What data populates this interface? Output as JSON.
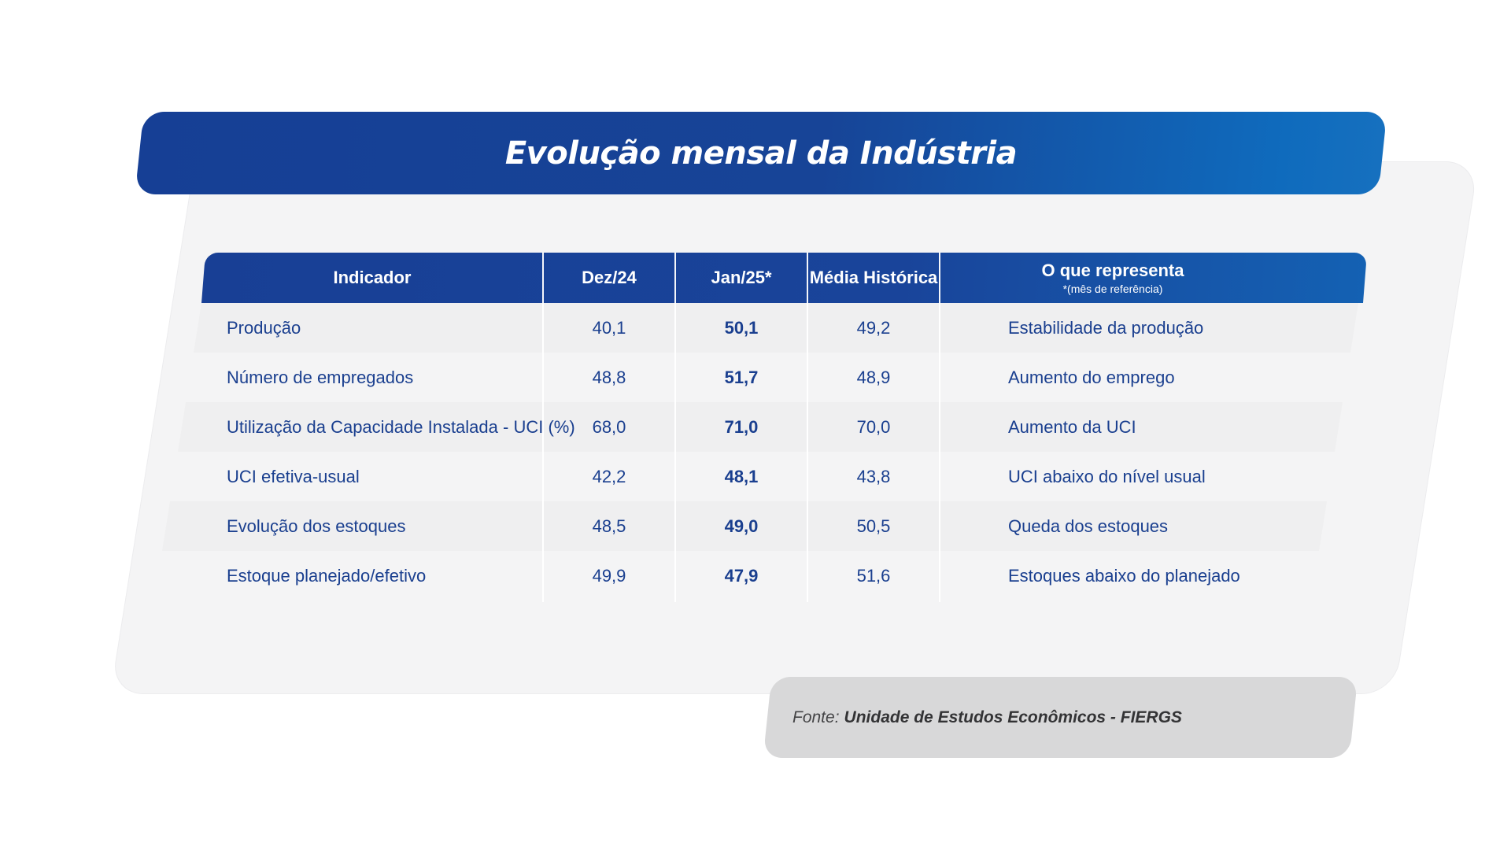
{
  "title": "Evolução mensal da Indústria",
  "table": {
    "headers": [
      {
        "label": "Indicador",
        "sub": ""
      },
      {
        "label": "Dez/24",
        "sub": ""
      },
      {
        "label": "Jan/25*",
        "sub": ""
      },
      {
        "label": "Média Histórica",
        "sub": ""
      },
      {
        "label": "O que representa",
        "sub": "*(mês de referência)"
      }
    ],
    "rows": [
      {
        "indicador": "Produção",
        "dez24": "40,1",
        "jan25": "50,1",
        "media": "49,2",
        "representa": "Estabilidade da produção"
      },
      {
        "indicador": "Número de empregados",
        "dez24": "48,8",
        "jan25": "51,7",
        "media": "48,9",
        "representa": "Aumento do emprego"
      },
      {
        "indicador": "Utilização da Capacidade Instalada - UCI (%)",
        "dez24": "68,0",
        "jan25": "71,0",
        "media": "70,0",
        "representa": "Aumento da UCI"
      },
      {
        "indicador": "UCI efetiva-usual",
        "dez24": "42,2",
        "jan25": "48,1",
        "media": "43,8",
        "representa": "UCI abaixo do nível usual"
      },
      {
        "indicador": "Evolução dos estoques",
        "dez24": "48,5",
        "jan25": "49,0",
        "media": "50,5",
        "representa": "Queda dos estoques"
      },
      {
        "indicador": "Estoque planejado/efetivo",
        "dez24": "49,9",
        "jan25": "47,9",
        "media": "51,6",
        "representa": "Estoques abaixo do planejado"
      }
    ]
  },
  "source": {
    "prefix": "Fonte:",
    "name": "Unidade de Estudos Econômicos - FIERGS"
  },
  "colors": {
    "brand_blue": "#183f95",
    "accent_blue": "#0f6bbd",
    "text_blue": "#1a3f8f",
    "panel_gray": "#f4f4f5",
    "source_gray": "#d8d8d9"
  }
}
